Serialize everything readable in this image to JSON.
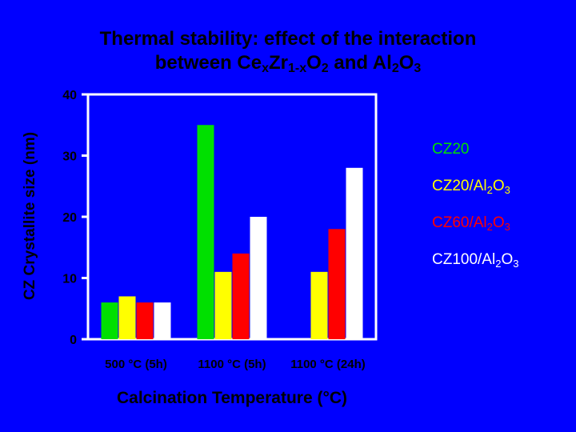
{
  "title": {
    "line1": "Thermal stability: effect of the interaction",
    "line2": {
      "p1": "between Ce",
      "s1": "x",
      "p2": "Zr",
      "s2": "1-x",
      "p3": "O",
      "s3": "2",
      "p4": " and Al",
      "s4": "2",
      "p5": "O",
      "s5": "3"
    }
  },
  "colors": {
    "background": "#0000ff",
    "plot_background": "#0000ff",
    "series": [
      "#00e000",
      "#ffff00",
      "#ff0000",
      "#ffffff"
    ]
  },
  "legend": [
    {
      "main": "CZ20"
    },
    {
      "main": "CZ20/Al",
      "sub1": "2",
      "mid": "O",
      "sub2": "3"
    },
    {
      "main": "CZ60/Al",
      "sub1": "2",
      "mid": "O",
      "sub2": "3"
    },
    {
      "main": "CZ100/Al",
      "sub1": "2",
      "mid": "O",
      "sub2": "3"
    }
  ],
  "chart_data": {
    "type": "bar",
    "ylabel": "CZ Crystallite size (nm)",
    "xlabel": "Calcination Temperature (°C)",
    "categories": [
      "500 °C (5h)",
      "1100 °C (5h)",
      "1100 °C (24h)"
    ],
    "yticks": [
      0,
      10,
      20,
      30,
      40
    ],
    "ylim": [
      0,
      40
    ],
    "grid": false,
    "legend_position": "right",
    "series": [
      {
        "name": "CZ20",
        "values": [
          6,
          35,
          null
        ]
      },
      {
        "name": "CZ20/Al2O3",
        "values": [
          7,
          11,
          11
        ]
      },
      {
        "name": "CZ60/Al2O3",
        "values": [
          6,
          14,
          18
        ]
      },
      {
        "name": "CZ100/Al2O3",
        "values": [
          6,
          20,
          28
        ]
      }
    ]
  }
}
